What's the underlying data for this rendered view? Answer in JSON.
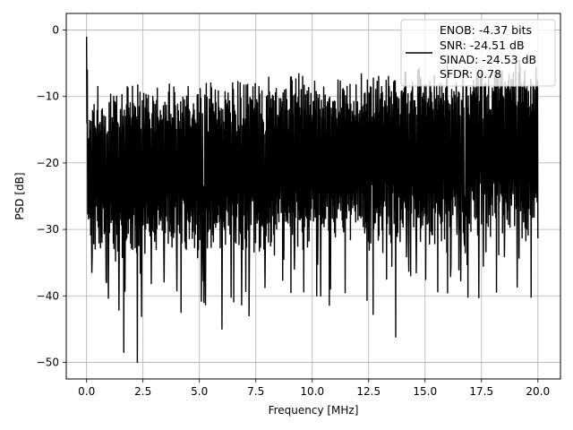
{
  "chart_data": {
    "type": "line",
    "title": "",
    "xlabel": "Frequency [MHz]",
    "ylabel": "PSD [dB]",
    "xlim": [
      -0.9,
      21.0
    ],
    "ylim": [
      -52.5,
      2.5
    ],
    "x_ticks": [
      0.0,
      2.5,
      5.0,
      7.5,
      10.0,
      12.5,
      15.0,
      17.5,
      20.0
    ],
    "x_tick_labels": [
      "0.0",
      "2.5",
      "5.0",
      "7.5",
      "10.0",
      "12.5",
      "15.0",
      "17.5",
      "20.0"
    ],
    "y_ticks": [
      0,
      -10,
      -20,
      -30,
      -40,
      -50
    ],
    "y_tick_labels": [
      "0",
      "−10",
      "−20",
      "−30",
      "−40",
      "−50"
    ],
    "grid": true,
    "legend_position": "top-right",
    "line_color": "#000000",
    "series": [
      {
        "name": "ENOB: -4.37 bits",
        "x_range": [
          0.0,
          20.0
        ],
        "num_points": 1200,
        "peak": {
          "x": 0.0,
          "y": -1.0
        },
        "noise_floor_range_approx": [
          -30,
          -8
        ],
        "deep_nulls": [
          {
            "x": 1.65,
            "y": -48.5
          },
          {
            "x": 2.25,
            "y": -50.0
          },
          {
            "x": 5.2,
            "y": -41.0
          },
          {
            "x": 6.0,
            "y": -45.0
          },
          {
            "x": 7.2,
            "y": -43.0
          },
          {
            "x": 10.2,
            "y": -40.0
          },
          {
            "x": 12.7,
            "y": -42.8
          },
          {
            "x": 13.7,
            "y": -46.2
          },
          {
            "x": 16.9,
            "y": -40.2
          },
          {
            "x": 19.7,
            "y": -40.2
          }
        ]
      }
    ],
    "legend_lines": [
      "ENOB: -4.37 bits",
      "SNR: -24.51 dB",
      "SINAD: -24.53 dB",
      "SFDR: 0.78"
    ]
  }
}
